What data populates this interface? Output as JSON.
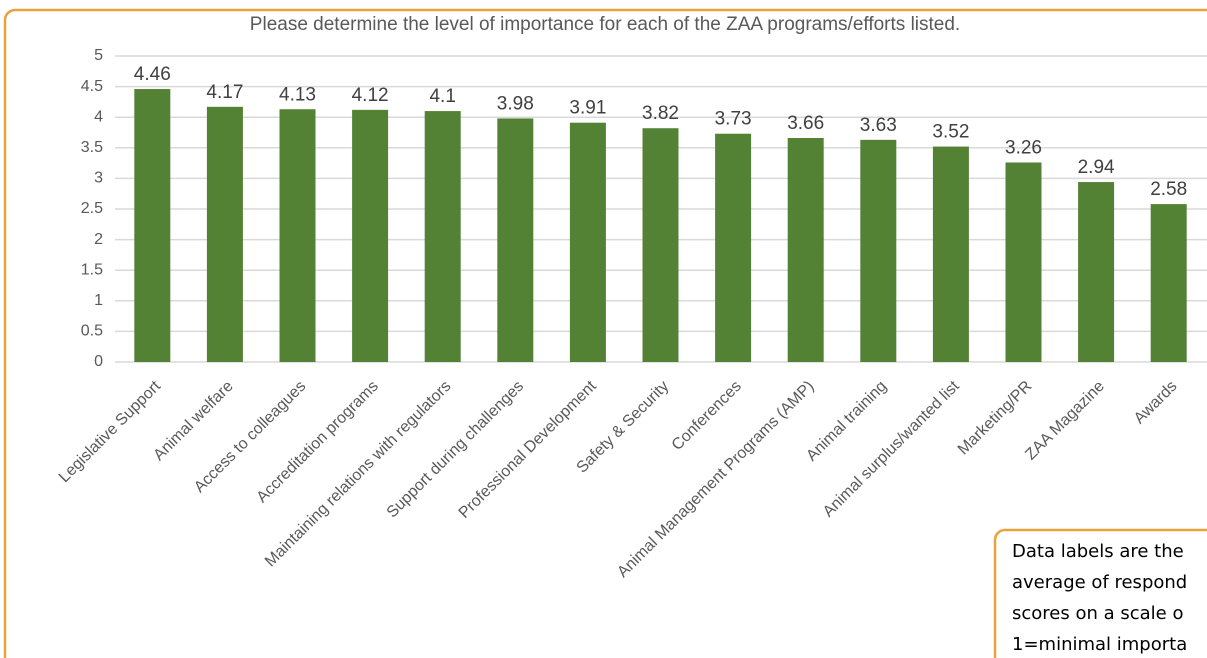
{
  "chart_data": {
    "type": "bar",
    "title": "Please determine the level of importance for each of the ZAA programs/efforts listed.",
    "categories": [
      "Legislative Support",
      "Animal welfare",
      "Access to colleagues",
      "Accreditation programs",
      "Maintaining relations with regulators",
      "Support during challenges",
      "Professional Development",
      "Safety & Security",
      "Conferences",
      "Animal Management Programs (AMP)",
      "Animal training",
      "Animal surplus/wanted list",
      "Marketing/PR",
      "ZAA Magazine",
      "Awards"
    ],
    "values": [
      4.46,
      4.17,
      4.13,
      4.12,
      4.1,
      3.98,
      3.91,
      3.82,
      3.73,
      3.66,
      3.63,
      3.52,
      3.26,
      2.94,
      2.58
    ],
    "color": "#548235",
    "ylim": [
      0,
      5
    ],
    "yticks": [
      0,
      0.5,
      1,
      1.5,
      2,
      2.5,
      3,
      3.5,
      4,
      4.5,
      5
    ],
    "grid": true,
    "annotation": [
      "Data labels are the",
      "average of respond",
      "scores on a scale o",
      "1=minimal importa"
    ]
  }
}
